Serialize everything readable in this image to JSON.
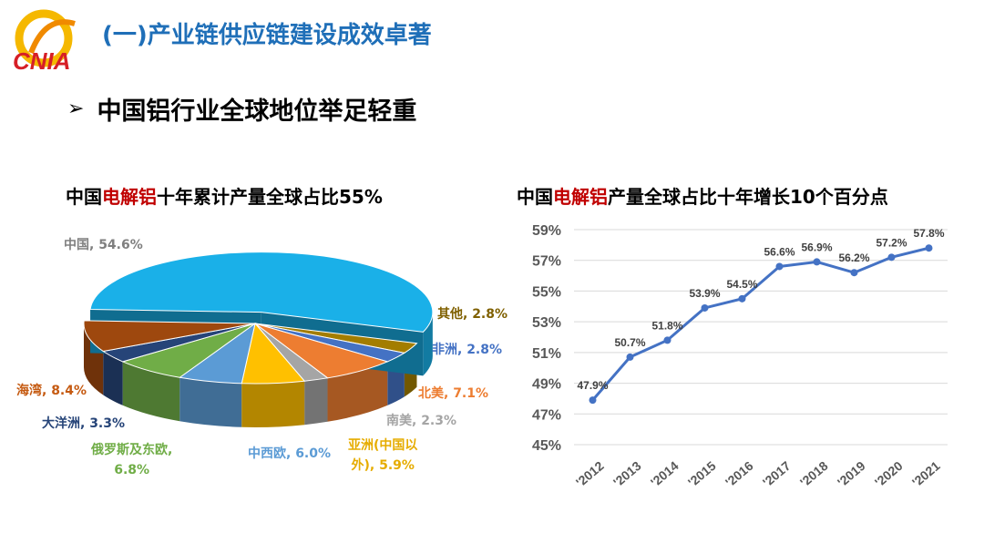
{
  "header": {
    "logo_text": "CNIA",
    "title": "(一)产业链供应链建设成效卓著"
  },
  "section": {
    "bullet": "➢",
    "subtitle": "中国铝行业全球地位举足轻重"
  },
  "chart_data": [
    {
      "type": "pie",
      "title_parts": [
        "中国",
        "电解铝",
        "十年累计产量全球占比55%"
      ],
      "slices": [
        {
          "label": "中国",
          "value": 54.6,
          "display": "中国, 54.6%",
          "color": "#1ab0e8"
        },
        {
          "label": "其他",
          "value": 2.8,
          "display": "其他, 2.8%",
          "color": "#a37d00"
        },
        {
          "label": "非洲",
          "value": 2.8,
          "display": "非洲, 2.8%",
          "color": "#4472c4"
        },
        {
          "label": "北美",
          "value": 7.1,
          "display": "北美, 7.1%",
          "color": "#ed7d31"
        },
        {
          "label": "南美",
          "value": 2.3,
          "display": "南美, 2.3%",
          "color": "#a5a5a5"
        },
        {
          "label": "亚洲(中国以外)",
          "value": 5.9,
          "display_line1": "亚洲(中国以",
          "display_line2": "外), 5.9%",
          "color": "#ffc000"
        },
        {
          "label": "中西欧",
          "value": 6.0,
          "display": "中西欧, 6.0%",
          "color": "#5b9bd5"
        },
        {
          "label": "俄罗斯及东欧",
          "value": 6.8,
          "display_line1": "俄罗斯及东欧,",
          "display_line2": "6.8%",
          "color": "#70ad47"
        },
        {
          "label": "大洋洲",
          "value": 3.3,
          "display": "大洋洲, 3.3%",
          "color": "#264478"
        },
        {
          "label": "海湾",
          "value": 8.4,
          "display": "海湾, 8.4%",
          "color": "#9e480e"
        }
      ]
    },
    {
      "type": "line",
      "title_parts": [
        "中国",
        "电解铝",
        "产量全球占比十年增长10个百分点"
      ],
      "categories": [
        "'2012",
        "'2013",
        "'2014",
        "'2015",
        "'2016",
        "'2017",
        "'2018",
        "'2019",
        "'2020",
        "'2021"
      ],
      "series": [
        {
          "values": [
            47.9,
            50.7,
            51.8,
            53.9,
            54.5,
            56.6,
            56.9,
            56.2,
            57.2,
            57.8
          ],
          "color": "#4472c4"
        }
      ],
      "data_labels": [
        "47.9%",
        "50.7%",
        "51.8%",
        "53.9%",
        "54.5%",
        "56.6%",
        "56.9%",
        "56.2%",
        "57.2%",
        "57.8%"
      ],
      "yticks": [
        45,
        47,
        49,
        51,
        53,
        55,
        57,
        59
      ],
      "ytick_labels": [
        "45%",
        "47%",
        "49%",
        "51%",
        "53%",
        "55%",
        "57%",
        "59%"
      ],
      "ylim": [
        45,
        59
      ],
      "grid": true
    }
  ]
}
